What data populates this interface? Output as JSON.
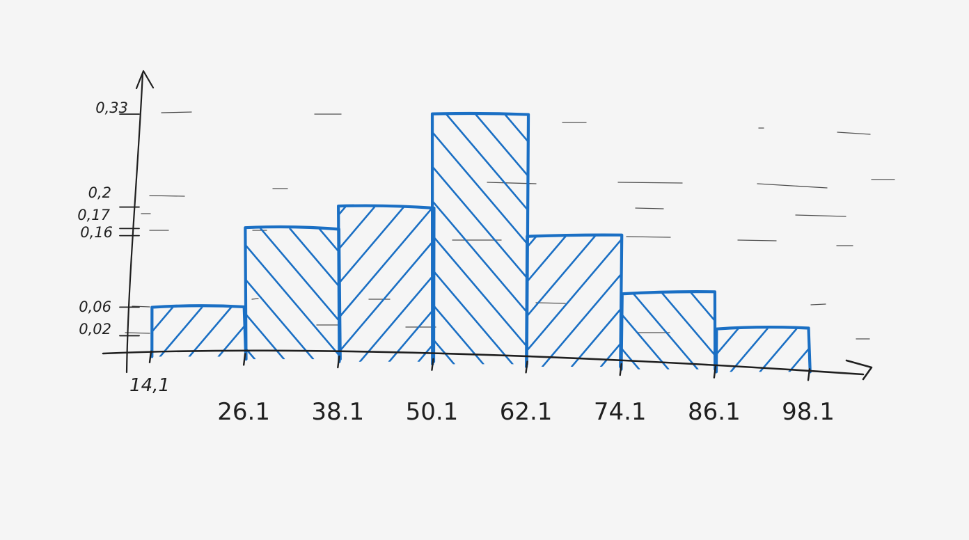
{
  "chart_data": {
    "type": "bar",
    "subtype": "histogram",
    "bins": [
      {
        "from": 14.1,
        "to": 26.1,
        "value": 0.06
      },
      {
        "from": 26.1,
        "to": 38.1,
        "value": 0.17
      },
      {
        "from": 38.1,
        "to": 50.1,
        "value": 0.2
      },
      {
        "from": 50.1,
        "to": 62.1,
        "value": 0.33
      },
      {
        "from": 62.1,
        "to": 74.1,
        "value": 0.16
      },
      {
        "from": 74.1,
        "to": 86.1,
        "value": 0.08
      },
      {
        "from": 86.1,
        "to": 98.1,
        "value": 0.03
      }
    ],
    "x_ticks": [
      "14,1",
      "26.1",
      "38.1",
      "50.1",
      "62.1",
      "74.1",
      "86.1",
      "98.1"
    ],
    "y_ticks": [
      {
        "value": 0.02,
        "label": "0,02"
      },
      {
        "value": 0.06,
        "label": "0,06"
      },
      {
        "value": 0.16,
        "label": "0,16"
      },
      {
        "value": 0.17,
        "label": "0,17"
      },
      {
        "value": 0.2,
        "label": "0,2"
      },
      {
        "value": 0.33,
        "label": "0,33"
      }
    ],
    "xlim": [
      14.1,
      98.1
    ],
    "ylim": [
      0,
      0.33
    ],
    "grid": true,
    "colors": {
      "bars": "#1a6fc4",
      "axes": "#1f1f1f",
      "grid": "#333333",
      "background": "#f5f5f5"
    }
  }
}
